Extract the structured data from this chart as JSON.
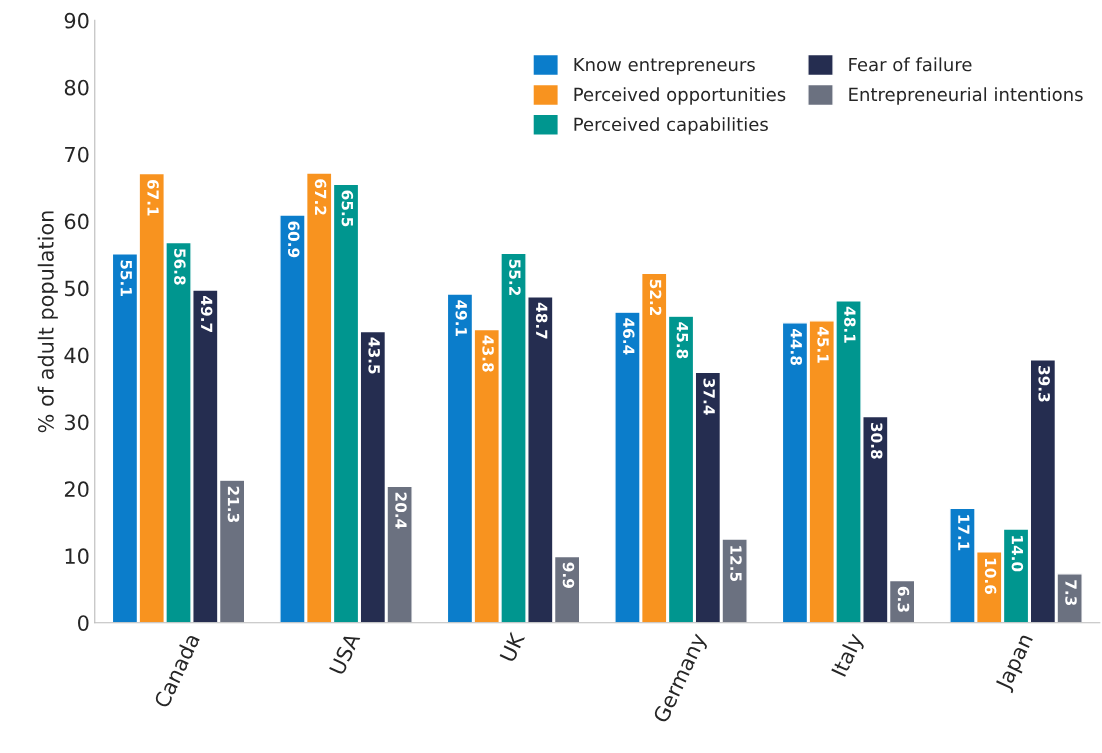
{
  "chart_data": {
    "type": "bar",
    "ylabel": "% of adult population",
    "categories": [
      "Canada",
      "USA",
      "UK",
      "Germany",
      "Italy",
      "Japan"
    ],
    "series": [
      {
        "name": "Know entrepreneurs",
        "color": "#0b7dcb",
        "values": [
          55.1,
          60.9,
          49.1,
          46.4,
          44.8,
          17.1
        ]
      },
      {
        "name": "Perceived opportunities",
        "color": "#f8931f",
        "values": [
          67.1,
          67.2,
          43.8,
          52.2,
          45.1,
          10.6
        ]
      },
      {
        "name": "Perceived capabilities",
        "color": "#00968f",
        "values": [
          56.8,
          65.5,
          55.2,
          45.8,
          48.1,
          14.0
        ]
      },
      {
        "name": "Fear of failure",
        "color": "#252d50",
        "values": [
          49.7,
          43.5,
          48.7,
          37.4,
          30.8,
          39.3
        ]
      },
      {
        "name": "Entrepreneurial intentions",
        "color": "#6b7180",
        "values": [
          21.3,
          20.4,
          9.9,
          12.5,
          6.3,
          7.3
        ]
      }
    ],
    "value_labels": [
      [
        "55.1",
        "60.9",
        "49.1",
        "46.4",
        "44.8",
        "17.1"
      ],
      [
        "67.1",
        "67.2",
        "43.8",
        "52.2",
        "45.1",
        "10.6"
      ],
      [
        "56.8",
        "65.5",
        "55.2",
        "45.8",
        "48.1",
        "14.0"
      ],
      [
        "49.7",
        "43.5",
        "48.7",
        "37.4",
        "30.8",
        "39.3"
      ],
      [
        "21.3",
        "20.4",
        "9.9",
        "12.5",
        "6.3",
        "7.3"
      ]
    ],
    "ylim": [
      0,
      90
    ],
    "yticks": [
      0,
      10,
      20,
      30,
      40,
      50,
      60,
      70,
      80,
      90
    ],
    "grid": false,
    "legend": "top right"
  }
}
